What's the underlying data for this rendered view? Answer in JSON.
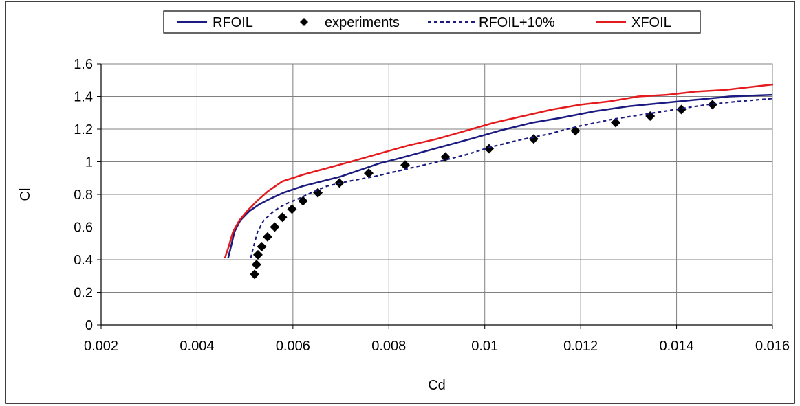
{
  "chart_data": {
    "type": "line",
    "title": "",
    "xlabel": "Cd",
    "ylabel": "Cl",
    "xlim": [
      0.002,
      0.016
    ],
    "ylim": [
      0,
      1.6
    ],
    "xticks": [
      0.002,
      0.004,
      0.006,
      0.008,
      0.01,
      0.012,
      0.014,
      0.016
    ],
    "xtick_labels": [
      "0.002",
      "0.004",
      "0.006",
      "0.008",
      "0.01",
      "0.012",
      "0.014",
      "0.016"
    ],
    "yticks": [
      0,
      0.2,
      0.4,
      0.6,
      0.8,
      1,
      1.2,
      1.4,
      1.6
    ],
    "ytick_labels": [
      "0",
      "0.2",
      "0.4",
      "0.6",
      "0.8",
      "1",
      "1.2",
      "1.4",
      "1.6"
    ],
    "grid": true,
    "legend_position": "top",
    "series": [
      {
        "name": "RFOIL",
        "style": "solid-line",
        "color": "#1a1a80",
        "x": [
          0.00465,
          0.0047,
          0.00478,
          0.0049,
          0.0051,
          0.0053,
          0.0055,
          0.0058,
          0.0062,
          0.0066,
          0.007,
          0.0074,
          0.0078,
          0.0082,
          0.0087,
          0.0092,
          0.0097,
          0.0103,
          0.011,
          0.0116,
          0.0123,
          0.013,
          0.0137,
          0.0144,
          0.0151,
          0.016
        ],
        "y": [
          0.41,
          0.47,
          0.57,
          0.64,
          0.7,
          0.74,
          0.77,
          0.81,
          0.85,
          0.88,
          0.91,
          0.95,
          0.99,
          1.02,
          1.06,
          1.1,
          1.14,
          1.19,
          1.24,
          1.27,
          1.31,
          1.34,
          1.36,
          1.38,
          1.4,
          1.41
        ]
      },
      {
        "name": "experiments",
        "style": "diamond-markers",
        "color": "#000000",
        "x": [
          0.0052,
          0.00524,
          0.00527,
          0.00535,
          0.00547,
          0.00562,
          0.00578,
          0.00598,
          0.00621,
          0.00652,
          0.00697,
          0.00758,
          0.00834,
          0.00918,
          0.01009,
          0.01102,
          0.01189,
          0.01273,
          0.01345,
          0.0141,
          0.01475
        ],
        "y": [
          0.31,
          0.37,
          0.43,
          0.48,
          0.54,
          0.6,
          0.66,
          0.71,
          0.76,
          0.81,
          0.87,
          0.93,
          0.98,
          1.03,
          1.08,
          1.14,
          1.19,
          1.24,
          1.28,
          1.32,
          1.35
        ]
      },
      {
        "name": "RFOIL+10%",
        "style": "dashed-line",
        "color": "#1a1a80",
        "x": [
          0.00512,
          0.00517,
          0.00526,
          0.00539,
          0.00561,
          0.00583,
          0.00609,
          0.00638,
          0.0067,
          0.00715,
          0.0077,
          0.00814,
          0.00858,
          0.00902,
          0.00957,
          0.01012,
          0.01067,
          0.01133,
          0.01199,
          0.01265,
          0.01331,
          0.01397,
          0.01463,
          0.01529,
          0.0161
        ],
        "y": [
          0.41,
          0.47,
          0.57,
          0.64,
          0.7,
          0.74,
          0.77,
          0.81,
          0.85,
          0.88,
          0.91,
          0.94,
          0.97,
          1.0,
          1.04,
          1.09,
          1.13,
          1.17,
          1.22,
          1.26,
          1.29,
          1.32,
          1.35,
          1.37,
          1.39
        ]
      },
      {
        "name": "XFOIL",
        "style": "solid-line",
        "color": "#e41a1c",
        "x": [
          0.00458,
          0.00465,
          0.00475,
          0.00488,
          0.00505,
          0.00525,
          0.00548,
          0.00578,
          0.0062,
          0.0067,
          0.0072,
          0.0078,
          0.0084,
          0.009,
          0.0096,
          0.0102,
          0.0108,
          0.0114,
          0.012,
          0.0126,
          0.0132,
          0.0138,
          0.0144,
          0.015,
          0.0156,
          0.0162
        ],
        "y": [
          0.41,
          0.47,
          0.57,
          0.64,
          0.7,
          0.76,
          0.82,
          0.88,
          0.92,
          0.96,
          1.0,
          1.05,
          1.1,
          1.14,
          1.19,
          1.24,
          1.28,
          1.32,
          1.35,
          1.37,
          1.4,
          1.41,
          1.43,
          1.44,
          1.46,
          1.48
        ]
      }
    ]
  }
}
